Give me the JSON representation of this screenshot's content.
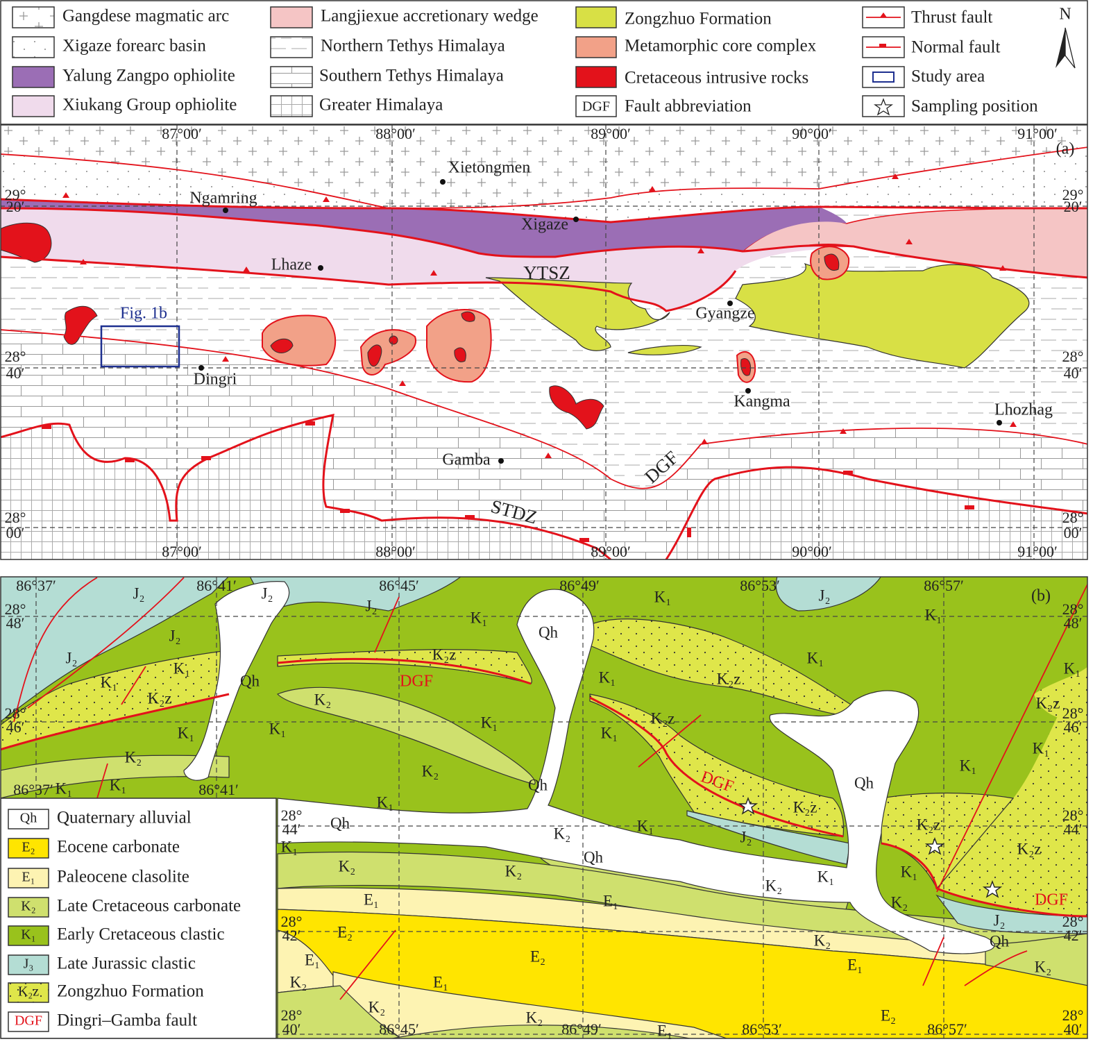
{
  "legend": {
    "items": [
      "Gangdese magmatic arc",
      "Xigaze forearc basin",
      "Yalung Zangpo ophiolite",
      "Xiukang Group ophiolite",
      "Langjiexue accretionary wedge",
      "Northern Tethys Himalaya",
      "Southern Tethys Himalaya",
      "Greater Himalaya",
      "Zongzhuo Formation",
      "Metamorphic core complex",
      "Cretaceous intrusive rocks",
      "Fault abbreviation",
      "Thrust fault",
      "Normal fault",
      "Study area",
      "Sampling position"
    ],
    "fault_symbol": "DGF",
    "north": "N"
  },
  "map_a": {
    "panel": "(a)",
    "longitudes": [
      "87°00′",
      "88°00′",
      "89°00′",
      "90°00′",
      "91°00′"
    ],
    "latitudes": [
      {
        "deg": "29°",
        "min": "20′"
      },
      {
        "deg": "28°",
        "min": "40′"
      },
      {
        "deg": "28°",
        "min": "00′"
      }
    ],
    "places": [
      "Xietongmen",
      "Ngamring",
      "Xigaze",
      "Lhaze",
      "YTSZ",
      "Gyangze",
      "Fig. 1b",
      "Dingri",
      "Kangma",
      "Lhozhag",
      "Gamba",
      "DGF",
      "STDZ"
    ]
  },
  "map_b": {
    "panel": "(b)",
    "longitudes_top": [
      "86°37′",
      "86°41′",
      "86°45′",
      "86°49′",
      "86°53′",
      "86°57′"
    ],
    "longitudes_bottom": [
      "86°37′",
      "86°41′",
      "86°45′",
      "86°49′",
      "86°53′",
      "86°57′"
    ],
    "latitudes": [
      {
        "deg": "28°",
        "min": "48′"
      },
      {
        "deg": "28°",
        "min": "46′"
      },
      {
        "deg": "28°",
        "min": "44′"
      },
      {
        "deg": "28°",
        "min": "42′"
      },
      {
        "deg": "28°",
        "min": "40′"
      }
    ],
    "units": [
      "J₂",
      "J₂",
      "J₂",
      "J₂",
      "J₂",
      "J₂",
      "K₁",
      "K₁",
      "K₁",
      "K₁",
      "K₁",
      "K₁",
      "K₁",
      "K₁",
      "K₁",
      "K₁",
      "K₁",
      "K₁",
      "K₁",
      "K₁",
      "K₁",
      "K₁",
      "K₁",
      "K₁",
      "K₁",
      "K₁",
      "K₁",
      "K₂z",
      "K₂z",
      "K₂z",
      "K₂z",
      "K₂z",
      "K₂z",
      "K₂z",
      "K₂z",
      "K₂",
      "K₂",
      "K₂",
      "K₂",
      "K₂",
      "K₂",
      "K₂",
      "K₂",
      "K₂",
      "K₂",
      "K₂",
      "K₂",
      "K₂",
      "E₁",
      "E₁",
      "E₁",
      "E₁",
      "E₁",
      "E₁",
      "E₂",
      "E₂",
      "E₂",
      "J₂",
      "J₂",
      "Qh",
      "Qh",
      "Qh",
      "Qh",
      "Qh",
      "Qh",
      "Qh"
    ],
    "fault_labels": [
      "DGF",
      "DGF",
      "DGF"
    ],
    "legend": [
      {
        "symbol": "Qh",
        "label": "Quaternary alluvial"
      },
      {
        "symbol": "E₂",
        "label": "Eocene carbonate"
      },
      {
        "symbol": "E₁",
        "label": "Paleocene clasolite"
      },
      {
        "symbol": "K₂",
        "label": "Late Cretaceous carbonate"
      },
      {
        "symbol": "K₁",
        "label": "Early Cretaceous clastic"
      },
      {
        "symbol": "J₃",
        "label": "Late Jurassic clastic"
      },
      {
        "symbol": "K₂z",
        "label": "Zongzhuo Formation"
      },
      {
        "symbol": "DGF",
        "label": "Dingri–Gamba fault"
      }
    ]
  }
}
